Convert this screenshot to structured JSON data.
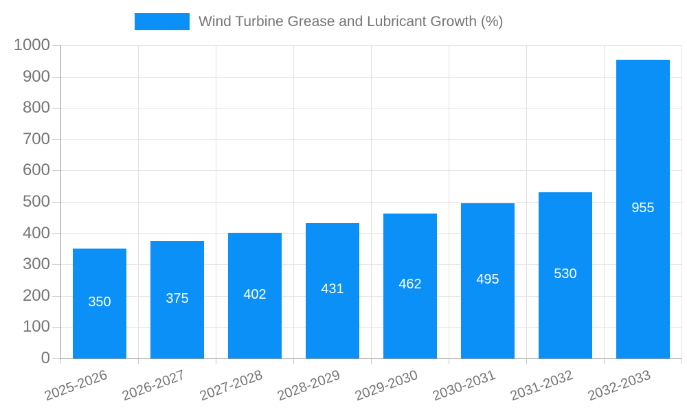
{
  "legend": {
    "title": "Wind Turbine Grease and Lubricant Growth (%)"
  },
  "chart_data": {
    "type": "bar",
    "title": "Wind Turbine Grease and Lubricant Growth (%)",
    "categories": [
      "2025-2026",
      "2026-2027",
      "2027-2028",
      "2028-2029",
      "2029-2030",
      "2030-2031",
      "2031-2032",
      "2032-2033"
    ],
    "values": [
      350,
      375,
      402,
      431,
      462,
      495,
      530,
      955
    ],
    "value_labels": [
      "350",
      "375",
      "402",
      "431",
      "462",
      "495",
      "530",
      "955"
    ],
    "ytick_labels": [
      "0",
      "100",
      "200",
      "300",
      "400",
      "500",
      "600",
      "700",
      "800",
      "900",
      "1000"
    ],
    "ylim": [
      0,
      1000
    ],
    "ytick_step": 100,
    "grid": true,
    "legend_position": "top",
    "x_label_rotation": -20,
    "colors": {
      "bar": "#0B90F8",
      "value_label": "#ffffff",
      "axis": "#999999",
      "grid": "#e0e0e0",
      "tick": "#c4c4c4",
      "label": "#757575"
    },
    "xlabel": "",
    "ylabel": ""
  }
}
